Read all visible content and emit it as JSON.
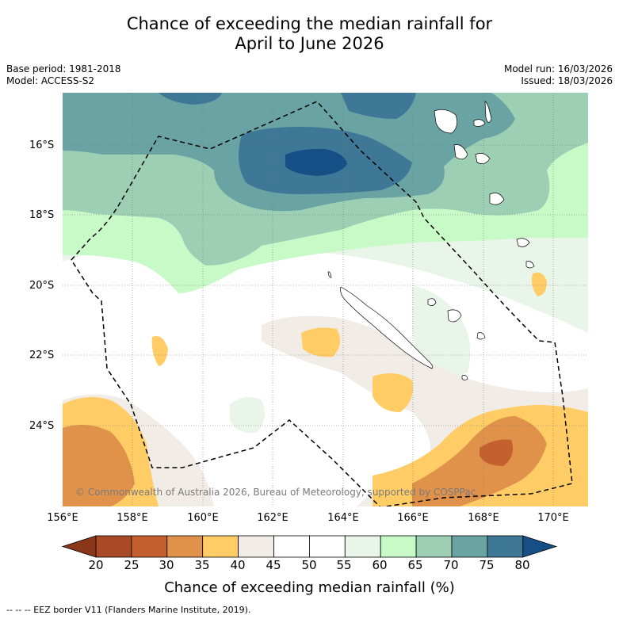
{
  "header": {
    "title_line1": "Chance of exceeding the median rainfall for",
    "title_line2": "April to June 2026",
    "base_period": "Base period: 1981-2018",
    "model": "Model: ACCESS-S2",
    "model_run": "Model run: 16/03/2026",
    "issued": "Issued: 18/03/2026"
  },
  "axes": {
    "lat_labels": [
      "16°S",
      "18°S",
      "20°S",
      "22°S",
      "24°S"
    ],
    "lon_labels": [
      "156°E",
      "158°E",
      "160°E",
      "162°E",
      "164°E",
      "166°E",
      "168°E",
      "170°E"
    ]
  },
  "copyright": "© Commonwealth of Australia 2026, Bureau of Meteorology, supported by COSPPac",
  "colorbar": {
    "ticks": [
      "20",
      "25",
      "30",
      "35",
      "40",
      "45",
      "50",
      "55",
      "60",
      "65",
      "70",
      "75",
      "80"
    ],
    "colors": [
      "#a84a26",
      "#c4602e",
      "#e0914a",
      "#ffcc66",
      "#f1ece6",
      "#ffffff",
      "#ffffff",
      "#e9f5e9",
      "#c8fac8",
      "#9ccfb4",
      "#6aa3a3",
      "#3f7797"
    ],
    "low_color": "#8a3618",
    "high_color": "#154f86",
    "title": "Chance of exceeding median rainfall (%)"
  },
  "legend_note": "-- -- -- EEZ border V11 (Flanders Marine Institute, 2019)."
}
